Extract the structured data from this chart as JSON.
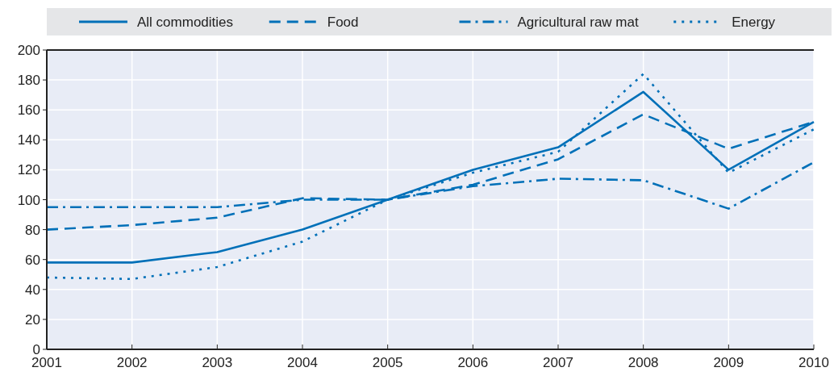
{
  "chart_data": {
    "type": "line",
    "x": [
      2001,
      2002,
      2003,
      2004,
      2005,
      2006,
      2007,
      2008,
      2009,
      2010
    ],
    "series": [
      {
        "name": "All commodities",
        "color": "#0070b8",
        "line_style": "solid",
        "values": [
          58,
          58,
          65,
          80,
          100,
          120,
          135,
          172,
          120,
          152
        ]
      },
      {
        "name": "Food",
        "color": "#0070b8",
        "line_style": "dashed",
        "values": [
          80,
          83,
          88,
          101,
          100,
          110,
          127,
          157,
          134,
          152
        ]
      },
      {
        "name": "Agricultural raw mat",
        "color": "#0070b8",
        "line_style": "dashdot",
        "values": [
          95,
          95,
          95,
          100,
          100,
          109,
          114,
          113,
          94,
          125
        ]
      },
      {
        "name": "Energy",
        "color": "#0070b8",
        "line_style": "dotted",
        "values": [
          48,
          47,
          55,
          72,
          100,
          118,
          132,
          184,
          118,
          147
        ]
      }
    ],
    "xlim": [
      2001,
      2010
    ],
    "xticks": [
      2001,
      2002,
      2003,
      2004,
      2005,
      2006,
      2007,
      2008,
      2009,
      2010
    ],
    "ylim": [
      0,
      200
    ],
    "yticks": [
      0,
      20,
      40,
      60,
      80,
      100,
      120,
      140,
      160,
      180,
      200
    ],
    "grid": true,
    "legend": "top"
  }
}
